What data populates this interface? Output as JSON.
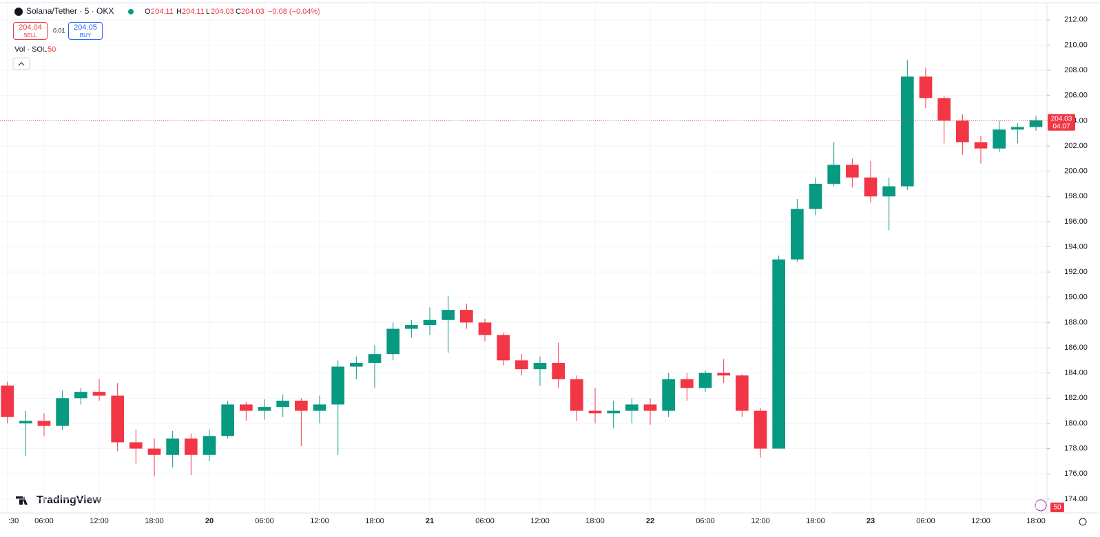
{
  "chart_data": {
    "type": "candlestick",
    "title": "Solana/Tether · 5 · OKX",
    "ohlc_header": {
      "o_label": "O",
      "open": 204.11,
      "h_label": "H",
      "high": 204.11,
      "l_label": "L",
      "low": 204.03,
      "c_label": "C",
      "close": 204.03,
      "change": "−0.08 (−0.04%)"
    },
    "sell": {
      "price": "204.04",
      "label": "SELL"
    },
    "spread": "0.01",
    "buy": {
      "price": "204.05",
      "label": "BUY"
    },
    "volume_label": "Vol · SOL",
    "volume_length": "50",
    "logo": "TradingView",
    "badge": "50",
    "last_price": 204.03,
    "countdown": "04:07",
    "up_color": "#089981",
    "down_color": "#f23645",
    "categories": [
      ":30",
      null,
      "06:00",
      null,
      null,
      "12:00",
      null,
      null,
      "18:00",
      null,
      null,
      "20",
      null,
      null,
      "06:00",
      null,
      null,
      "12:00",
      null,
      null,
      "18:00",
      null,
      null,
      "21",
      null,
      null,
      "06:00",
      null,
      null,
      "12:00",
      null,
      null,
      "18:00",
      null,
      null,
      "22",
      null,
      null,
      "06:00",
      null,
      null,
      "12:00",
      null,
      null,
      "18:00",
      null,
      null,
      "23",
      null,
      null,
      "06:00",
      null,
      null,
      "12:00",
      null,
      null,
      "18:00"
    ],
    "open": [
      183,
      180,
      180.2,
      179.8,
      182,
      182.5,
      182.2,
      178.5,
      178,
      177.5,
      178.8,
      177.5,
      179,
      181.5,
      181,
      181.3,
      181.8,
      181,
      181.5,
      184.5,
      184.8,
      185.5,
      187.5,
      187.8,
      188.2,
      189,
      188,
      187,
      185,
      184.3,
      184.8,
      183.5,
      181,
      180.8,
      181,
      181.5,
      181,
      183.5,
      182.8,
      184,
      183.8,
      181,
      178,
      193,
      197,
      199,
      200.5,
      199.5,
      198,
      198.8,
      207.5,
      205.8,
      204,
      202.3,
      201.8,
      203.3,
      203.5
    ],
    "high": [
      183.3,
      181,
      180.8,
      182.6,
      182.8,
      183.5,
      183.2,
      179.5,
      178.8,
      179.4,
      179.2,
      179.5,
      181.8,
      181.7,
      181.9,
      182.3,
      182,
      182.2,
      185,
      185.3,
      186.2,
      188,
      188.2,
      189.2,
      190.1,
      189.5,
      188.3,
      187.2,
      185.5,
      185.3,
      186.4,
      183.8,
      182.8,
      181.8,
      182,
      182,
      184,
      184,
      184.2,
      185.1,
      183.9,
      181.2,
      193.3,
      197.8,
      199.5,
      202.3,
      201,
      200.8,
      199.5,
      208.8,
      208.2,
      206,
      204.5,
      202.8,
      204,
      203.8,
      204.4
    ],
    "low": [
      180,
      177.4,
      179,
      179.5,
      181.5,
      181.8,
      177.8,
      176.8,
      175.8,
      176.5,
      175.9,
      177,
      178.8,
      180.2,
      180.3,
      180.5,
      178.2,
      180,
      177.5,
      183.5,
      182.8,
      185,
      186.8,
      187,
      185.6,
      187.5,
      186.5,
      184.6,
      183.8,
      183,
      182.8,
      180.2,
      180,
      179.6,
      180,
      179.9,
      180.5,
      181.8,
      182.5,
      183.2,
      180.5,
      177.3,
      178,
      192.8,
      196.5,
      198.8,
      198.7,
      197.5,
      195.3,
      198.5,
      205,
      202.2,
      201.3,
      200.6,
      201.5,
      202.2,
      203.2
    ],
    "close": [
      180.5,
      180.2,
      179.8,
      182,
      182.5,
      182.2,
      178.5,
      178,
      177.5,
      178.8,
      177.5,
      179,
      181.5,
      181,
      181.3,
      181.8,
      181,
      181.5,
      184.5,
      184.8,
      185.5,
      187.5,
      187.8,
      188.2,
      189,
      188,
      187,
      185,
      184.3,
      184.8,
      183.5,
      181,
      180.8,
      181,
      181.5,
      181,
      183.5,
      182.8,
      184,
      183.8,
      181,
      178,
      193,
      197,
      199,
      200.5,
      199.5,
      198,
      198.8,
      207.5,
      205.8,
      204,
      202.3,
      201.8,
      203.3,
      203.5,
      204.03
    ],
    "ylim": [
      172.9,
      213.3
    ],
    "yticks": [
      {
        "value": 174,
        "label": "174.00"
      },
      {
        "value": 176,
        "label": "176.00"
      },
      {
        "value": 178,
        "label": "178.00"
      },
      {
        "value": 180,
        "label": "180.00"
      },
      {
        "value": 182,
        "label": "182.00"
      },
      {
        "value": 184,
        "label": "184.00"
      },
      {
        "value": 186,
        "label": "186.00"
      },
      {
        "value": 188,
        "label": "188.00"
      },
      {
        "value": 190,
        "label": "190.00"
      },
      {
        "value": 192,
        "label": "192.00"
      },
      {
        "value": 194,
        "label": "194.00"
      },
      {
        "value": 196,
        "label": "196.00"
      },
      {
        "value": 198,
        "label": "198.00"
      },
      {
        "value": 200,
        "label": "200.00"
      },
      {
        "value": 202,
        "label": "202.00"
      },
      {
        "value": 204,
        "label": "204.00"
      },
      {
        "value": 206,
        "label": "206.00"
      },
      {
        "value": 208,
        "label": "208.00"
      },
      {
        "value": 210,
        "label": "210.00"
      },
      {
        "value": 212,
        "label": "212.00"
      }
    ]
  }
}
